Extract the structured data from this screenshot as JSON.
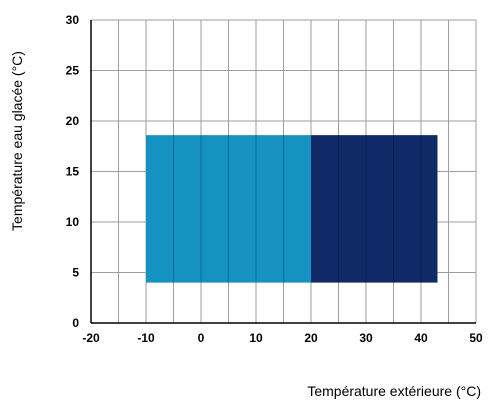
{
  "chart_data": {
    "type": "area",
    "title": "",
    "xlabel": "Température extérieure (°C)",
    "ylabel": "Température eau glacée (°C)",
    "xlim": [
      -20,
      50
    ],
    "ylim": [
      0,
      30
    ],
    "x_ticks": [
      "-20",
      "-10",
      "0",
      "10",
      "20",
      "30",
      "40",
      "50"
    ],
    "y_ticks": [
      "0",
      "5",
      "10",
      "15",
      "20",
      "25",
      "30"
    ],
    "grid": true,
    "grid_x_step": 5,
    "grid_y_step": 5,
    "regions": [
      {
        "x": [
          -10,
          20
        ],
        "y": [
          4,
          18.6
        ],
        "color": "#1692c0"
      },
      {
        "x": [
          20,
          43
        ],
        "y": [
          4,
          18.6
        ],
        "color": "#0f2a66"
      }
    ]
  }
}
